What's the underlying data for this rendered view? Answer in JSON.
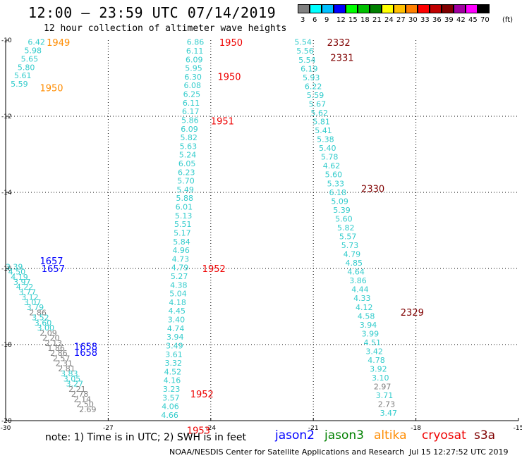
{
  "header": {
    "title": "12:00 – 23:59 UTC 07/14/2019",
    "subtitle": "12 hour collection of altimeter wave heights"
  },
  "color_scale": {
    "unit": "(ft)",
    "bins": [
      {
        "label": "3",
        "color": "#808080"
      },
      {
        "label": "6",
        "color": "#00ffff"
      },
      {
        "label": "9",
        "color": "#00bfff"
      },
      {
        "label": "12",
        "color": "#0000ff"
      },
      {
        "label": "15",
        "color": "#00ff00"
      },
      {
        "label": "18",
        "color": "#00c000"
      },
      {
        "label": "21",
        "color": "#008000"
      },
      {
        "label": "24",
        "color": "#ffff00"
      },
      {
        "label": "27",
        "color": "#ffc000"
      },
      {
        "label": "30",
        "color": "#ff8000"
      },
      {
        "label": "33",
        "color": "#ff0000"
      },
      {
        "label": "36",
        "color": "#c00000"
      },
      {
        "label": "39",
        "color": "#800000"
      },
      {
        "label": "42",
        "color": "#a000a0"
      },
      {
        "label": "45",
        "color": "#ff00ff"
      },
      {
        "label": "70",
        "color": "#000000"
      }
    ]
  },
  "chart_data": {
    "type": "scatter",
    "x_ticks": [
      "-30",
      "-27",
      "-24",
      "-21",
      "-18",
      "-15"
    ],
    "y_ticks": [
      "-10",
      "-12",
      "-14",
      "-16",
      "-18",
      "-20"
    ],
    "xlim": [
      -30,
      -15
    ],
    "ylim": [
      -20,
      -10
    ],
    "grid": true,
    "tracks": [
      {
        "satellite": "altika",
        "color": "#ff8c00",
        "start": [
          -29.1,
          -10.05
        ],
        "end": [
          -29.6,
          -11.15
        ],
        "times": [
          {
            "label": "1949",
            "lon": -28.8,
            "lat": -10.06
          },
          {
            "label": "1950",
            "lon": -29.0,
            "lat": -11.25
          }
        ],
        "values": [
          "6.42",
          "5.98",
          "5.65",
          "5.80",
          "5.61",
          "5.59"
        ]
      },
      {
        "satellite": "cryosat",
        "color": "#ee0000",
        "start": [
          -24.45,
          -10.05
        ],
        "end": [
          -25.2,
          -19.85
        ],
        "times": [
          {
            "label": "1950",
            "lon": -23.75,
            "lat": -10.06
          },
          {
            "label": "1950",
            "lon": -23.8,
            "lat": -10.95
          },
          {
            "label": "1951",
            "lon": -24.0,
            "lat": -12.12
          },
          {
            "label": "1952",
            "lon": -24.25,
            "lat": -16.0
          },
          {
            "label": "1952",
            "lon": -24.6,
            "lat": -19.3
          },
          {
            "label": "1953",
            "lon": -24.7,
            "lat": -20.25
          }
        ],
        "values": [
          "6.86",
          "6.11",
          "6.09",
          "5.95",
          "6.30",
          "6.08",
          "6.25",
          "6.11",
          "6.17",
          "5.86",
          "6.09",
          "5.82",
          "5.63",
          "5.24",
          "6.05",
          "6.23",
          "5.70",
          "5.49",
          "5.88",
          "6.01",
          "5.13",
          "5.51",
          "5.17",
          "5.84",
          "4.96",
          "4.73",
          "4.79",
          "5.27",
          "4.38",
          "5.04",
          "4.18",
          "4.45",
          "3.40",
          "4.74",
          "3.94",
          "3.49",
          "3.61",
          "3.32",
          "4.52",
          "4.16",
          "3.23",
          "3.57",
          "4.06",
          "4.66"
        ]
      },
      {
        "satellite": "s3a",
        "color": "#800000",
        "start": [
          -21.3,
          -10.05
        ],
        "end": [
          -18.8,
          -19.8
        ],
        "times": [
          {
            "label": "2332",
            "lon": -20.6,
            "lat": -10.06
          },
          {
            "label": "2331",
            "lon": -20.5,
            "lat": -10.45
          },
          {
            "label": "2330",
            "lon": -19.6,
            "lat": -13.9
          },
          {
            "label": "2329",
            "lon": -18.45,
            "lat": -17.15
          }
        ],
        "values": [
          "5.54",
          "5.56",
          "5.54",
          "6.19",
          "5.93",
          "6.22",
          "5.59",
          "5.67",
          "5.62",
          "5.81",
          "5.41",
          "5.38",
          "5.40",
          "5.78",
          "4.62",
          "5.60",
          "5.33",
          "6.18",
          "5.09",
          "5.39",
          "5.60",
          "5.82",
          "5.57",
          "5.73",
          "4.79",
          "4.85",
          "4.64",
          "3.86",
          "4.44",
          "4.33",
          "4.12",
          "4.58",
          "3.94",
          "3.99",
          "4.51",
          "3.42",
          "4.78",
          "3.92",
          "3.10",
          "2.97",
          "3.71",
          "2.73",
          "3.47"
        ]
      },
      {
        "satellite": "jason2",
        "color": "#0000ff",
        "start": [
          -29.75,
          -15.95
        ],
        "end": [
          -27.6,
          -19.7
        ],
        "times": [
          {
            "label": "1657",
            "lon": -29.0,
            "lat": -15.8
          },
          {
            "label": "1657",
            "lon": -28.95,
            "lat": -16.0
          },
          {
            "label": "1658",
            "lon": -28.0,
            "lat": -18.05
          },
          {
            "label": "1658",
            "lon": -28.0,
            "lat": -18.2
          }
        ],
        "values": [
          "3.39",
          "4.50",
          "4.19",
          "3.97",
          "4.22",
          "3.77",
          "3.12",
          "3.07",
          "3.79",
          "2.86",
          "3.52",
          "3.60",
          "3.00",
          "2.09",
          "2.20",
          "2.13",
          "1.86",
          "2.86",
          "2.57",
          "2.31",
          "2.81",
          "3.83",
          "3.05",
          "3.27",
          "2.21",
          "2.78",
          "2.14",
          "2.50",
          "2.69"
        ]
      }
    ]
  },
  "legend": {
    "note": "note:  1) Time is in UTC;  2) SWH is in feet",
    "items": [
      {
        "name": "jason2",
        "color": "#0000ff"
      },
      {
        "name": "jason3",
        "color": "#008000"
      },
      {
        "name": "altika",
        "color": "#ff8c00"
      },
      {
        "name": "cryosat",
        "color": "#ee0000"
      },
      {
        "name": "s3a",
        "color": "#800000"
      }
    ]
  },
  "footer": {
    "credit": "NOAA/NESDIS Center for Satellite Applications and Research",
    "timestamp": "Jul 15 12:27:52 UTC 2019"
  }
}
